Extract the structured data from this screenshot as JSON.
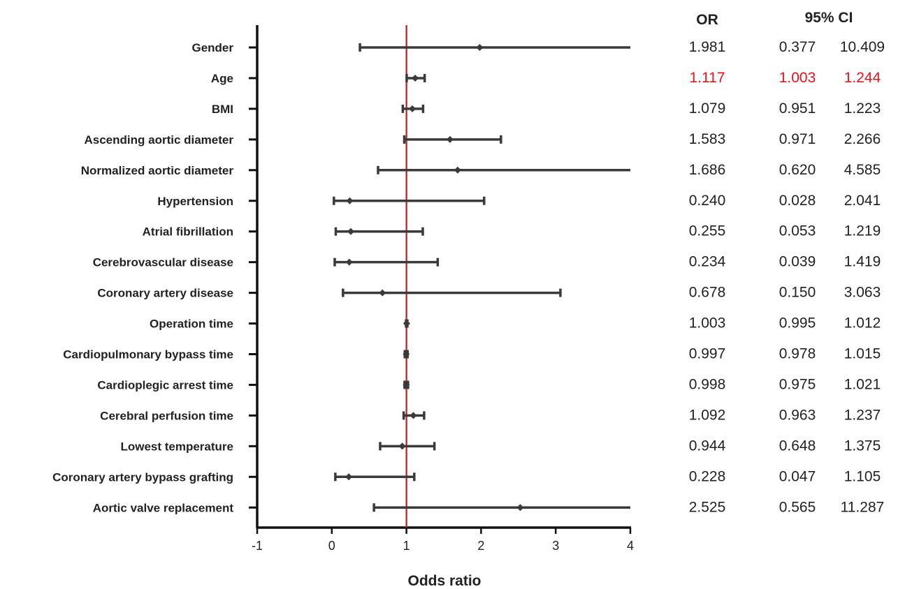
{
  "chart_data": {
    "type": "forest",
    "xlabel": "Odds ratio",
    "xlim": [
      -1,
      4
    ],
    "xticks": [
      -1,
      0,
      1,
      2,
      3,
      4
    ],
    "reference_line": 1,
    "column_headers": {
      "or": "OR",
      "ci": "95% CI"
    },
    "colors": {
      "bars": "#3a3a3a",
      "reference": "#b22222",
      "text": "#222222",
      "highlight": "#e8141e"
    },
    "rows": [
      {
        "label": "Gender",
        "or": "1.981",
        "lo": "0.377",
        "hi": "10.409",
        "highlight": false
      },
      {
        "label": "Age",
        "or": "1.117",
        "lo": "1.003",
        "hi": "1.244",
        "highlight": true
      },
      {
        "label": "BMI",
        "or": "1.079",
        "lo": "0.951",
        "hi": "1.223",
        "highlight": false
      },
      {
        "label": "Ascending aortic diameter",
        "or": "1.583",
        "lo": "0.971",
        "hi": "2.266",
        "highlight": false
      },
      {
        "label": "Normalized aortic diameter",
        "or": "1.686",
        "lo": "0.620",
        "hi": "4.585",
        "highlight": false
      },
      {
        "label": "Hypertension",
        "or": "0.240",
        "lo": "0.028",
        "hi": "2.041",
        "highlight": false
      },
      {
        "label": "Atrial fibrillation",
        "or": "0.255",
        "lo": "0.053",
        "hi": "1.219",
        "highlight": false
      },
      {
        "label": "Cerebrovascular disease",
        "or": "0.234",
        "lo": "0.039",
        "hi": "1.419",
        "highlight": false
      },
      {
        "label": "Coronary artery disease",
        "or": "0.678",
        "lo": "0.150",
        "hi": "3.063",
        "highlight": false
      },
      {
        "label": "Operation time",
        "or": "1.003",
        "lo": "0.995",
        "hi": "1.012",
        "highlight": false
      },
      {
        "label": "Cardiopulmonary bypass time",
        "or": "0.997",
        "lo": "0.978",
        "hi": "1.015",
        "highlight": false
      },
      {
        "label": "Cardioplegic arrest time",
        "or": "0.998",
        "lo": "0.975",
        "hi": "1.021",
        "highlight": false
      },
      {
        "label": "Cerebral perfusion time",
        "or": "1.092",
        "lo": "0.963",
        "hi": "1.237",
        "highlight": false
      },
      {
        "label": "Lowest temperature",
        "or": "0.944",
        "lo": "0.648",
        "hi": "1.375",
        "highlight": false
      },
      {
        "label": "Coronary artery bypass grafting",
        "or": "0.228",
        "lo": "0.047",
        "hi": "1.105",
        "highlight": false
      },
      {
        "label": "Aortic valve replacement",
        "or": "2.525",
        "lo": "0.565",
        "hi": "11.287",
        "highlight": false
      }
    ]
  }
}
